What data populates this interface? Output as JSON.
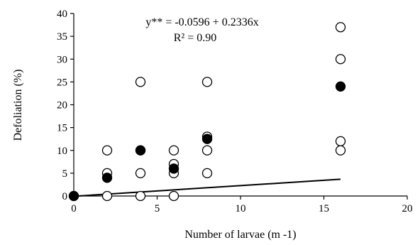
{
  "chart_data": {
    "type": "scatter",
    "xlabel": "Number of larvae (m -1)",
    "ylabel": "Defoliation (%)",
    "xlim": [
      0,
      20
    ],
    "ylim": [
      0,
      40
    ],
    "x_ticks": [
      0,
      5,
      10,
      15,
      20
    ],
    "y_ticks": [
      0,
      5,
      10,
      15,
      20,
      25,
      30,
      35,
      40
    ],
    "grid": false,
    "annotations": {
      "equation": "y** = -0.0596 + 0.2336x",
      "r_squared": "R² = 0.90"
    },
    "series": [
      {
        "marker": "open-circle",
        "points": [
          [
            0,
            0
          ],
          [
            2,
            0
          ],
          [
            2,
            5
          ],
          [
            2,
            10
          ],
          [
            4,
            0
          ],
          [
            4,
            5
          ],
          [
            4,
            10
          ],
          [
            4,
            25
          ],
          [
            6,
            0
          ],
          [
            6,
            5
          ],
          [
            6,
            7
          ],
          [
            6,
            10
          ],
          [
            8,
            5
          ],
          [
            8,
            10
          ],
          [
            8,
            13
          ],
          [
            8,
            25
          ],
          [
            16,
            10
          ],
          [
            16,
            12
          ],
          [
            16,
            30
          ],
          [
            16,
            37
          ]
        ]
      },
      {
        "marker": "filled-circle",
        "points": [
          [
            0,
            0
          ],
          [
            2,
            4
          ],
          [
            4,
            10
          ],
          [
            6,
            6
          ],
          [
            8,
            12.5
          ],
          [
            16,
            24
          ]
        ]
      }
    ],
    "trendline": {
      "intercept": -0.0596,
      "slope": 0.2336,
      "x_range": [
        0,
        16
      ]
    }
  }
}
